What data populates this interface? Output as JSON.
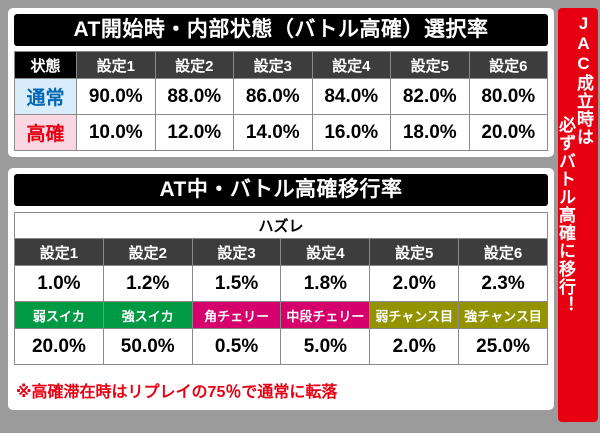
{
  "page": {
    "background": "#9b9b9b"
  },
  "chart_data": [
    {
      "type": "table",
      "title": "AT開始時・内部状態（バトル高確）選択率",
      "corner_header": "状態",
      "columns": [
        "設定1",
        "設定2",
        "設定3",
        "設定4",
        "設定5",
        "設定6"
      ],
      "rows": [
        {
          "label": "通常",
          "values": [
            "90.0%",
            "88.0%",
            "86.0%",
            "84.0%",
            "82.0%",
            "80.0%"
          ]
        },
        {
          "label": "高確",
          "values": [
            "10.0%",
            "12.0%",
            "14.0%",
            "16.0%",
            "18.0%",
            "20.0%"
          ]
        }
      ]
    },
    {
      "type": "table",
      "title": "AT中・バトル高確移行率",
      "subheader": "ハズレ",
      "columns": [
        "設定1",
        "設定2",
        "設定3",
        "設定4",
        "設定5",
        "設定6"
      ],
      "hazure_values": [
        "1.0%",
        "1.2%",
        "1.5%",
        "1.8%",
        "2.0%",
        "2.3%"
      ],
      "role_columns": [
        "弱スイカ",
        "強スイカ",
        "角チェリー",
        "中段チェリー",
        "弱チャンス目",
        "強チャンス目"
      ],
      "role_values": [
        "20.0%",
        "50.0%",
        "0.5%",
        "5.0%",
        "2.0%",
        "25.0%"
      ],
      "note": "※高確滞在時はリプレイの75％で通常に転落"
    }
  ],
  "side_banner": {
    "lines": [
      "JAC成立時は",
      "必ずバトル高確に移行！"
    ],
    "background": "#e60012"
  },
  "colors": {
    "normal_text": "#0067b5",
    "normal_bg": "#d9ecf9",
    "kokaku_text": "#e60012",
    "kokaku_bg": "#fad6e2",
    "setting_header_bg": "#3d3d3d",
    "green": "#009944",
    "magenta": "#d6006c",
    "olive": "#939300",
    "banner_red": "#e60012",
    "note_red": "#e60012"
  }
}
